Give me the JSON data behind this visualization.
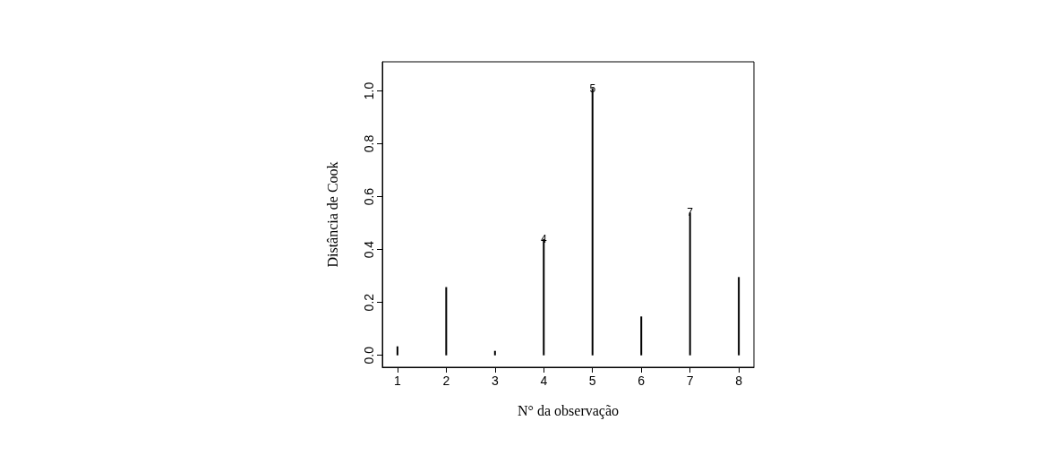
{
  "chart_data": {
    "type": "bar",
    "xlabel": "N° da observação",
    "ylabel": "Distância de Cook",
    "x": [
      1,
      2,
      3,
      4,
      5,
      6,
      7,
      8
    ],
    "values": [
      0.034,
      0.258,
      0.017,
      0.44,
      1.01,
      0.147,
      0.54,
      0.296
    ],
    "color": "#000000",
    "xlim": [
      0.69,
      8.31
    ],
    "xticks": [
      1,
      2,
      3,
      4,
      5,
      6,
      7,
      8
    ],
    "ylim": [
      -0.045,
      1.11
    ],
    "yticks": [
      {
        "value": 0,
        "label": "0.0"
      },
      {
        "value": 0.2,
        "label": "0.2"
      },
      {
        "value": 0.4,
        "label": "0.4"
      },
      {
        "value": 0.6,
        "label": "0.6"
      },
      {
        "value": 0.8,
        "label": "0.8"
      },
      {
        "value": 1,
        "label": "1.0"
      }
    ],
    "grid": false,
    "annotations": [
      {
        "text": "4",
        "x": 4,
        "y": 0.44
      },
      {
        "text": "5",
        "x": 5,
        "y": 1.01
      },
      {
        "text": "7",
        "x": 7,
        "y": 0.54
      }
    ]
  }
}
